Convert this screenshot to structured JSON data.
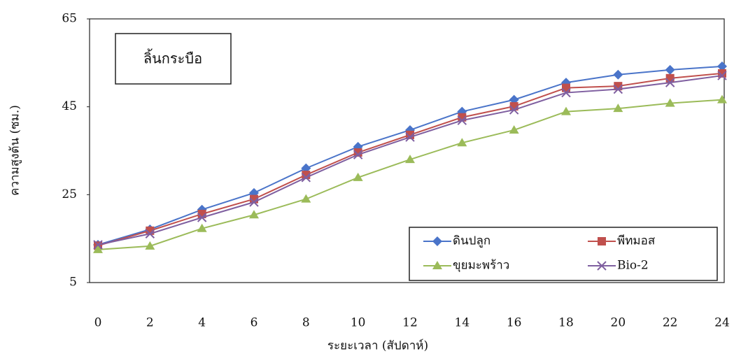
{
  "chart_data": {
    "type": "line",
    "annotation": "ลิ้นกระบือ",
    "x_label": "ระยะเวลา (สัปดาห์)",
    "y_label": "ความสูงต้น (ซม.)",
    "x": [
      0,
      2,
      4,
      6,
      8,
      10,
      12,
      14,
      16,
      18,
      20,
      22,
      24
    ],
    "xlim": [
      0,
      24
    ],
    "xticks": [
      0,
      2,
      4,
      6,
      8,
      10,
      12,
      14,
      16,
      18,
      20,
      22,
      24
    ],
    "ylim": [
      5,
      65
    ],
    "yticks": [
      5,
      25,
      45,
      65
    ],
    "series": [
      {
        "name": "ดินปลูก",
        "color": "#4a74c9",
        "marker": "diamond",
        "values": [
          13.6,
          17.1,
          21.6,
          25.4,
          31,
          35.9,
          39.7,
          43.9,
          46.6,
          50.5,
          52.3,
          53.4,
          54.2
        ]
      },
      {
        "name": "พีทมอส",
        "color": "#c0504d",
        "marker": "square",
        "values": [
          13.4,
          16.8,
          20.6,
          24,
          29.5,
          34.6,
          38.6,
          42.6,
          45.1,
          49.3,
          49.7,
          51.5,
          52.6
        ]
      },
      {
        "name": "ขุยมะพร้าว",
        "color": "#9bbb59",
        "marker": "triangle",
        "values": [
          12.5,
          13.3,
          17.3,
          20.4,
          24,
          28.9,
          33,
          36.8,
          39.7,
          43.9,
          44.6,
          45.8,
          46.6
        ]
      },
      {
        "name": "Bio-2",
        "color": "#7f5fa0",
        "marker": "x",
        "values": [
          13.6,
          16.1,
          19.8,
          23.3,
          28.9,
          34.1,
          38.1,
          41.9,
          44.3,
          48.2,
          49,
          50.5,
          52.1
        ]
      }
    ]
  }
}
